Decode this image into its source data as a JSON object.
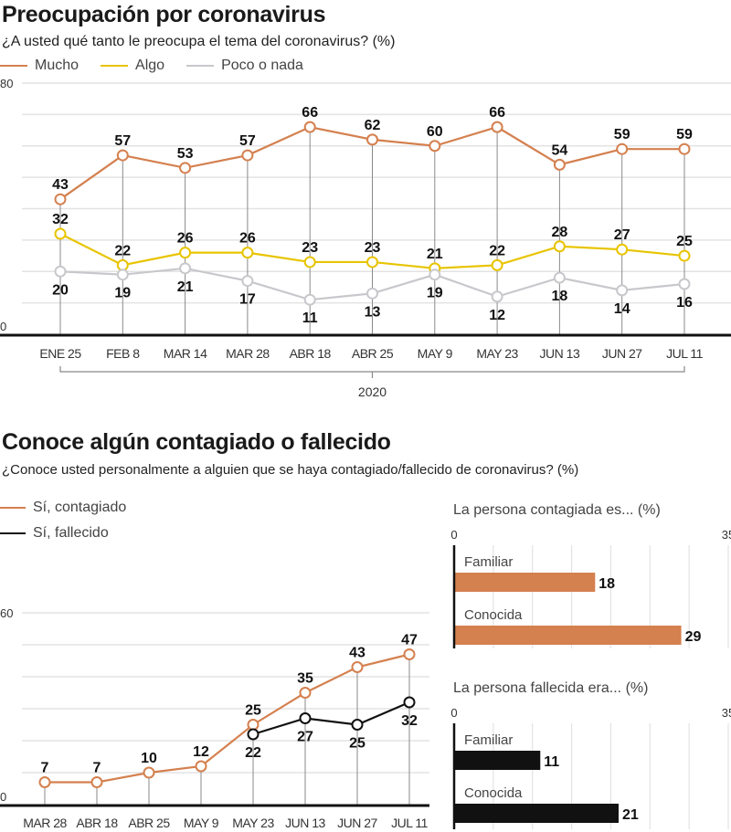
{
  "chart_data": [
    {
      "type": "line",
      "title": "Preocupación por coronavirus",
      "subtitle": "¿A usted qué tanto le preocupa el tema del coronavirus?  (%)",
      "categories": [
        "ENE 25",
        "FEB 8",
        "MAR 14",
        "MAR 28",
        "ABR 18",
        "ABR 25",
        "MAY 9",
        "MAY 23",
        "JUN 13",
        "JUN 27",
        "JUL 11"
      ],
      "series": [
        {
          "name": "Mucho",
          "color": "#d4804f",
          "values": [
            43,
            57,
            53,
            57,
            66,
            62,
            60,
            66,
            54,
            59,
            59
          ],
          "label_position": "above"
        },
        {
          "name": "Algo",
          "color": "#e8c400",
          "values": [
            32,
            22,
            26,
            26,
            23,
            23,
            21,
            22,
            28,
            27,
            25
          ],
          "label_position": "above"
        },
        {
          "name": "Poco o nada",
          "color": "#c8c8cc",
          "values": [
            20,
            19,
            21,
            17,
            11,
            13,
            19,
            12,
            18,
            14,
            16
          ],
          "label_position": "below"
        }
      ],
      "ylim": [
        0,
        80
      ],
      "ytick_labels": [
        "0",
        "80"
      ],
      "grid_step": 10,
      "grid": true,
      "xgroup_label": "2020",
      "xlabel": "",
      "ylabel": "",
      "legend": "top-left"
    },
    {
      "type": "line",
      "title": "Conoce algún contagiado o fallecido",
      "subtitle": "¿Conoce usted personalmente a alguien que se haya contagiado/fallecido de coronavirus? (%)",
      "categories": [
        "MAR 28",
        "ABR 18",
        "ABR 25",
        "MAY 9",
        "MAY 23",
        "JUN 13",
        "JUN 27",
        "JUL 11"
      ],
      "series": [
        {
          "name": "Sí, contagiado",
          "color": "#d4804f",
          "values": [
            7,
            7,
            10,
            12,
            25,
            35,
            43,
            47
          ],
          "label_position": "above"
        },
        {
          "name": "Sí, fallecido",
          "color": "#111111",
          "values": [
            null,
            null,
            null,
            null,
            22,
            27,
            25,
            32
          ],
          "label_position": "below"
        }
      ],
      "ylim": [
        0,
        60
      ],
      "ytick_labels": [
        "0",
        "60"
      ],
      "grid_step": 10,
      "grid": true,
      "xlabel": "",
      "ylabel": "",
      "legend": "top-left"
    },
    {
      "type": "bar",
      "orientation": "horizontal",
      "title": "La persona contagiada es... (%)",
      "categories": [
        "Familiar",
        "Conocida"
      ],
      "values": [
        18,
        29
      ],
      "color": "#d4804f",
      "xlim": [
        0,
        35
      ],
      "xtick_labels": [
        "0",
        "35"
      ],
      "grid_step": 5,
      "grid": true
    },
    {
      "type": "bar",
      "orientation": "horizontal",
      "title": "La persona fallecida era... (%)",
      "categories": [
        "Familiar",
        "Conocida"
      ],
      "values": [
        11,
        21
      ],
      "color": "#111111",
      "xlim": [
        0,
        35
      ],
      "xtick_labels": [
        "0",
        "35"
      ],
      "grid_step": 5,
      "grid": true
    }
  ]
}
